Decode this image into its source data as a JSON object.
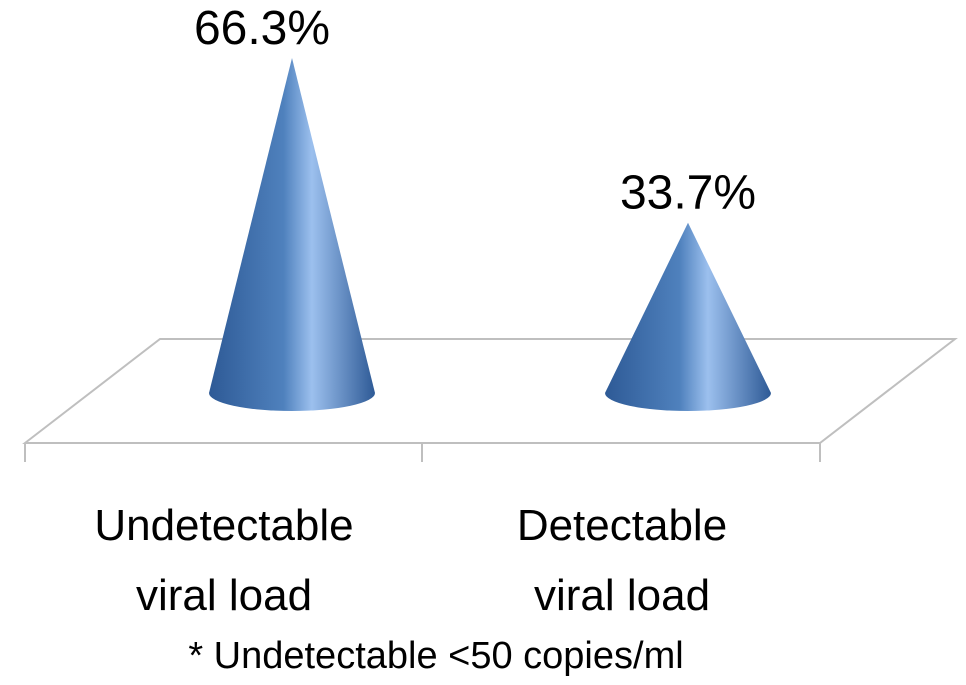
{
  "chart_data": {
    "type": "bar",
    "shape": "cone-3d",
    "categories": [
      [
        "Undetectable",
        "viral load"
      ],
      [
        "Detectable",
        "viral load"
      ]
    ],
    "values": [
      66.3,
      33.7
    ],
    "value_labels": [
      "66.3%",
      "33.7%"
    ],
    "unit": "%",
    "ylim": [
      0,
      70
    ],
    "footnote": "* Undetectable <50 copies/ml",
    "grid": false,
    "legend": "none",
    "colors": {
      "cone_dark": "#2E5A96",
      "cone_mid": "#4F81BD",
      "cone_light": "#9CC0EE",
      "floor_line": "#BFBFBF"
    }
  }
}
